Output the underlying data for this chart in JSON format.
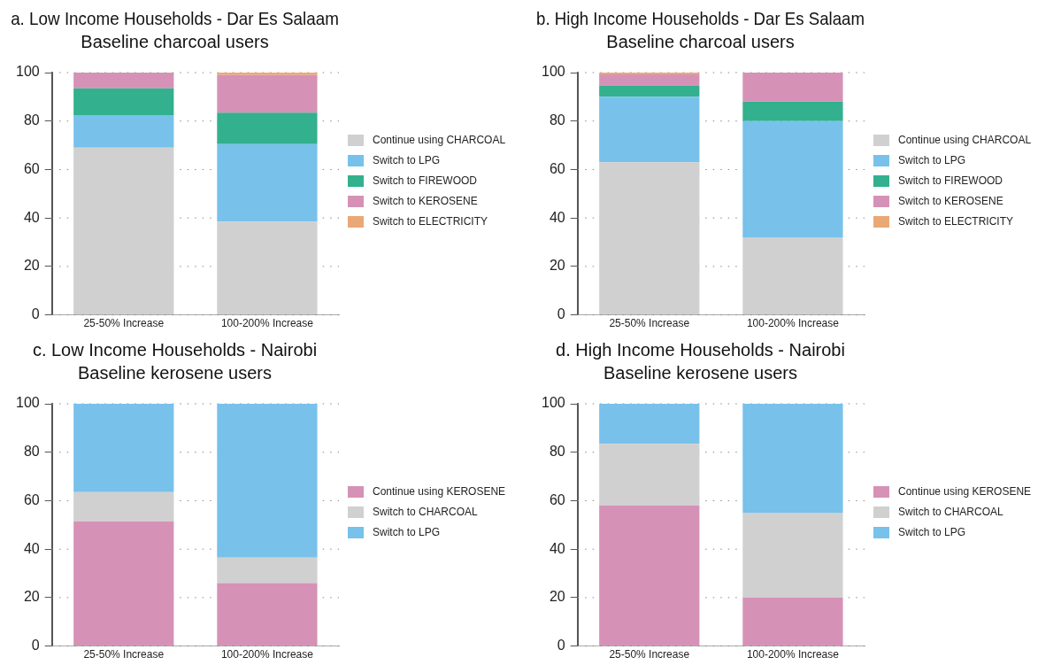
{
  "chart_data": [
    {
      "type": "bar",
      "title": "a. Low Income Households - Dar Es Salaam",
      "subtitle": "Baseline charcoal users",
      "categories": [
        "25-50% Increase",
        "100-200% Increase"
      ],
      "stacked": true,
      "ylim": [
        0,
        100
      ],
      "yticks": [
        0,
        20,
        40,
        60,
        80,
        100
      ],
      "grid": "y",
      "legend": "right",
      "series": [
        {
          "name": "Continue using CHARCOAL",
          "color": "#d0d0d0",
          "values": [
            69,
            38.5
          ]
        },
        {
          "name": "Switch to LPG",
          "color": "#77c1eb",
          "values": [
            13.5,
            32
          ]
        },
        {
          "name": "Switch to FIREWOOD",
          "color": "#33b08d",
          "values": [
            11,
            13
          ]
        },
        {
          "name": "Switch to KEROSENE",
          "color": "#d592b6",
          "values": [
            6.5,
            15.5
          ]
        },
        {
          "name": "Switch to ELECTRICITY",
          "color": "#eba877",
          "values": [
            0,
            1
          ]
        }
      ]
    },
    {
      "type": "bar",
      "title": "b. High Income Households - Dar Es Salaam",
      "subtitle": "Baseline charcoal users",
      "categories": [
        "25-50% Increase",
        "100-200% Increase"
      ],
      "stacked": true,
      "ylim": [
        0,
        100
      ],
      "yticks": [
        0,
        20,
        40,
        60,
        80,
        100
      ],
      "grid": "y",
      "legend": "right",
      "series": [
        {
          "name": "Continue using CHARCOAL",
          "color": "#d0d0d0",
          "values": [
            63,
            32
          ]
        },
        {
          "name": "Switch to LPG",
          "color": "#77c1eb",
          "values": [
            27,
            48
          ]
        },
        {
          "name": "Switch to FIREWOOD",
          "color": "#33b08d",
          "values": [
            4.5,
            8
          ]
        },
        {
          "name": "Switch to KEROSENE",
          "color": "#d592b6",
          "values": [
            4.8,
            12
          ]
        },
        {
          "name": "Switch to ELECTRICITY",
          "color": "#eba877",
          "values": [
            0.7,
            0
          ]
        }
      ]
    },
    {
      "type": "bar",
      "title": "c. Low Income Households - Nairobi",
      "subtitle": "Baseline kerosene users",
      "categories": [
        "25-50% Increase",
        "100-200% Increase"
      ],
      "stacked": true,
      "ylim": [
        0,
        100
      ],
      "yticks": [
        0,
        20,
        40,
        60,
        80,
        100
      ],
      "grid": "y",
      "legend": "right",
      "series": [
        {
          "name": "Continue using KEROSENE",
          "color": "#d592b6",
          "values": [
            51.5,
            26
          ]
        },
        {
          "name": "Switch to CHARCOAL",
          "color": "#d0d0d0",
          "values": [
            12,
            10.5
          ]
        },
        {
          "name": "Switch to LPG",
          "color": "#77c1eb",
          "values": [
            36.5,
            63.5
          ]
        }
      ]
    },
    {
      "type": "bar",
      "title": "d. High Income Households - Nairobi",
      "subtitle": "Baseline kerosene users",
      "categories": [
        "25-50% Increase",
        "100-200% Increase"
      ],
      "stacked": true,
      "ylim": [
        0,
        100
      ],
      "yticks": [
        0,
        20,
        40,
        60,
        80,
        100
      ],
      "grid": "y",
      "legend": "right",
      "series": [
        {
          "name": "Continue using KEROSENE",
          "color": "#d592b6",
          "values": [
            58,
            20
          ]
        },
        {
          "name": "Switch to CHARCOAL",
          "color": "#d0d0d0",
          "values": [
            25.5,
            35
          ]
        },
        {
          "name": "Switch to LPG",
          "color": "#77c1eb",
          "values": [
            16.5,
            45
          ]
        }
      ]
    }
  ]
}
